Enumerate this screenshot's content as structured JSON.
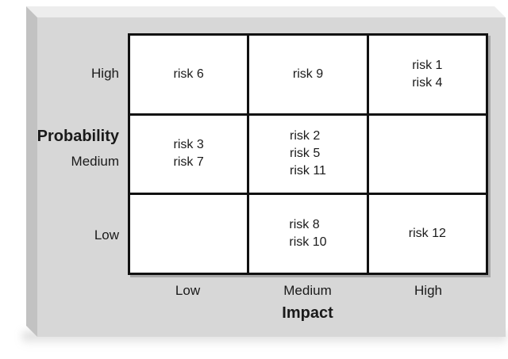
{
  "figure": {
    "type": "risk-matrix",
    "colors": {
      "page_background": "#ffffff",
      "panel_face": "#d7d7d7",
      "panel_bevel_top": "#ededed",
      "panel_bevel_left": "#c2c2c2",
      "grid_line": "#111111",
      "cell_background": "#ffffff",
      "text": "#1a1a1a"
    },
    "y_axis": {
      "title": "Probability",
      "labels": [
        "High",
        "Medium",
        "Low"
      ]
    },
    "x_axis": {
      "title": "Impact",
      "labels": [
        "Low",
        "Medium",
        "High"
      ]
    },
    "cells": [
      {
        "probability": "High",
        "impact": "Low",
        "risks": [
          "risk 6"
        ]
      },
      {
        "probability": "High",
        "impact": "Medium",
        "risks": [
          "risk 9"
        ]
      },
      {
        "probability": "High",
        "impact": "High",
        "risks": [
          "risk 1",
          "risk 4"
        ]
      },
      {
        "probability": "Medium",
        "impact": "Low",
        "risks": [
          "risk 3",
          "risk 7"
        ]
      },
      {
        "probability": "Medium",
        "impact": "Medium",
        "risks": [
          "risk 2",
          "risk 5",
          "risk 11"
        ]
      },
      {
        "probability": "Medium",
        "impact": "High",
        "risks": []
      },
      {
        "probability": "Low",
        "impact": "Low",
        "risks": []
      },
      {
        "probability": "Low",
        "impact": "Medium",
        "risks": [
          "risk 8",
          "risk 10"
        ]
      },
      {
        "probability": "Low",
        "impact": "High",
        "risks": [
          "risk 12"
        ]
      }
    ]
  }
}
